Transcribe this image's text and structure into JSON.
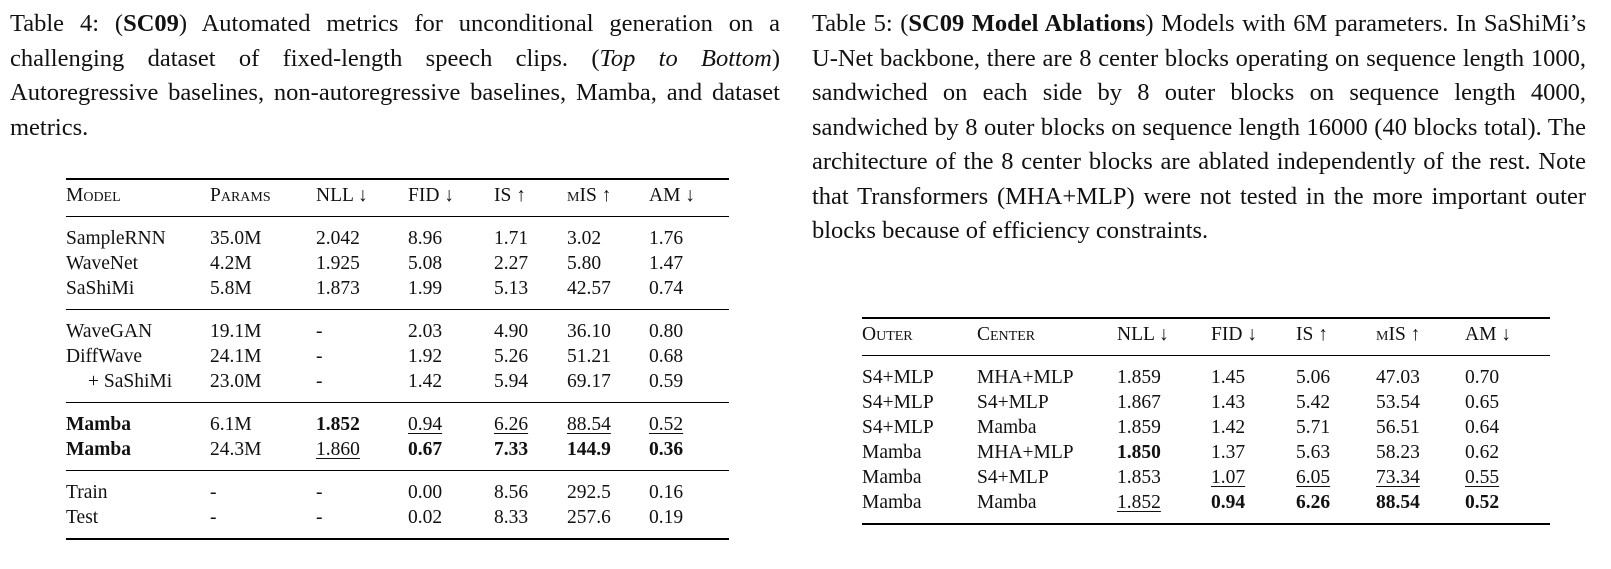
{
  "table4": {
    "caption": {
      "label": "Table 4: (",
      "tag": "SC09",
      "text1": ") Automated metrics for unconditional generation on a challenging dataset of fixed-length speech clips. (",
      "italic": "Top to Bottom",
      "text2": ") Autoregressive baselines, non-autoregressive baselines, Mamba, and dataset metrics."
    },
    "headers": [
      "Model",
      "Params",
      "NLL ↓",
      "FID ↓",
      "IS ↑",
      "mIS ↑",
      "AM ↓"
    ],
    "rows": [
      [
        "SampleRNN",
        "35.0M",
        "2.042",
        "8.96",
        "1.71",
        "3.02",
        "1.76"
      ],
      [
        "WaveNet",
        "4.2M",
        "1.925",
        "5.08",
        "2.27",
        "5.80",
        "1.47"
      ],
      [
        "SaShiMi",
        "5.8M",
        "1.873",
        "1.99",
        "5.13",
        "42.57",
        "0.74"
      ],
      [
        "WaveGAN",
        "19.1M",
        "-",
        "2.03",
        "4.90",
        "36.10",
        "0.80"
      ],
      [
        "DiffWave",
        "24.1M",
        "-",
        "1.92",
        "5.26",
        "51.21",
        "0.68"
      ],
      [
        "+ SaShiMi",
        "23.0M",
        "-",
        "1.42",
        "5.94",
        "69.17",
        "0.59"
      ],
      [
        "Mamba",
        "6.1M",
        "1.852",
        "0.94",
        "6.26",
        "88.54",
        "0.52"
      ],
      [
        "Mamba",
        "24.3M",
        "1.860",
        "0.67",
        "7.33",
        "144.9",
        "0.36"
      ],
      [
        "Train",
        "-",
        "-",
        "0.00",
        "8.56",
        "292.5",
        "0.16"
      ],
      [
        "Test",
        "-",
        "-",
        "0.02",
        "8.33",
        "257.6",
        "0.19"
      ]
    ]
  },
  "table5": {
    "caption": {
      "label": "Table 5: (",
      "tag": "SC09 Model Ablations",
      "text1": ") Models with 6M parameters. In SaShiMi’s U-Net backbone, there are 8 center blocks operating on sequence length 1000, sandwiched on each side by 8 outer blocks on sequence length 4000, sandwiched by 8 outer blocks on sequence length 16000 (40 blocks total). The architecture of the 8 center blocks are ablated independently of the rest. Note that Transformers (MHA+MLP) were not tested in the more important outer blocks because of efficiency constraints."
    },
    "headers": [
      "Outer",
      "Center",
      "NLL ↓",
      "FID ↓",
      "IS ↑",
      "mIS ↑",
      "AM ↓"
    ],
    "rows": [
      [
        "S4+MLP",
        "MHA+MLP",
        "1.859",
        "1.45",
        "5.06",
        "47.03",
        "0.70"
      ],
      [
        "S4+MLP",
        "S4+MLP",
        "1.867",
        "1.43",
        "5.42",
        "53.54",
        "0.65"
      ],
      [
        "S4+MLP",
        "Mamba",
        "1.859",
        "1.42",
        "5.71",
        "56.51",
        "0.64"
      ],
      [
        "Mamba",
        "MHA+MLP",
        "1.850",
        "1.37",
        "5.63",
        "58.23",
        "0.62"
      ],
      [
        "Mamba",
        "S4+MLP",
        "1.853",
        "1.07",
        "6.05",
        "73.34",
        "0.55"
      ],
      [
        "Mamba",
        "Mamba",
        "1.852",
        "0.94",
        "6.26",
        "88.54",
        "0.52"
      ]
    ]
  }
}
